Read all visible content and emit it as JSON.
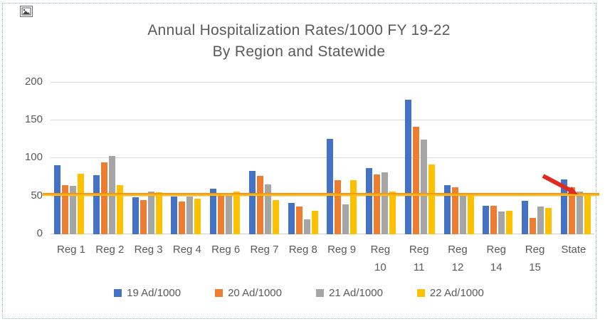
{
  "chart_data": {
    "type": "bar",
    "title_line1": "Annual Hospitalization Rates/1000 FY 19-22",
    "title_line2": "By Region and Statewide",
    "categories": [
      {
        "label": "Reg 1",
        "lines": [
          "Reg 1"
        ]
      },
      {
        "label": "Reg 2",
        "lines": [
          "Reg 2"
        ]
      },
      {
        "label": "Reg 3",
        "lines": [
          "Reg 3"
        ]
      },
      {
        "label": "Reg 4",
        "lines": [
          "Reg 4"
        ]
      },
      {
        "label": "Reg 6",
        "lines": [
          "Reg 6"
        ]
      },
      {
        "label": "Reg 7",
        "lines": [
          "Reg 7"
        ]
      },
      {
        "label": "Reg 8",
        "lines": [
          "Reg 8"
        ]
      },
      {
        "label": "Reg 9",
        "lines": [
          "Reg 9"
        ]
      },
      {
        "label": "Reg 10",
        "lines": [
          "Reg",
          "10"
        ]
      },
      {
        "label": "Reg 11",
        "lines": [
          "Reg",
          "11"
        ]
      },
      {
        "label": "Reg 12",
        "lines": [
          "Reg",
          "12"
        ]
      },
      {
        "label": "Reg 14",
        "lines": [
          "Reg",
          "14"
        ]
      },
      {
        "label": "Reg 15",
        "lines": [
          "Reg",
          "15"
        ]
      },
      {
        "label": "State",
        "lines": [
          "State"
        ]
      }
    ],
    "series": [
      {
        "name": "19 Ad/1000",
        "color": "#4472C4",
        "values": [
          91,
          78,
          49,
          50,
          60,
          84,
          41,
          126,
          87,
          177,
          65,
          38,
          44,
          72
        ]
      },
      {
        "name": "20 Ad/1000",
        "color": "#ED7D31",
        "values": [
          65,
          95,
          45,
          43,
          51,
          77,
          37,
          71,
          79,
          142,
          62,
          38,
          22,
          62
        ]
      },
      {
        "name": "21 Ad/1000",
        "color": "#A5A5A5",
        "values": [
          64,
          103,
          56,
          50,
          52,
          66,
          20,
          39,
          82,
          125,
          53,
          30,
          37,
          56
        ]
      },
      {
        "name": "22 Ad/1000",
        "color": "#FFC000",
        "values": [
          80,
          65,
          55,
          47,
          56,
          45,
          31,
          71,
          56,
          92,
          54,
          31,
          35,
          54
        ]
      }
    ],
    "yticks": [
      200,
      150,
      100,
      50,
      0
    ],
    "ylim": [
      0,
      200
    ],
    "grid": true,
    "legend_position": "bottom",
    "reference_line": {
      "value": 52,
      "color_top": "#F7941D",
      "color_bottom": "#FFC000"
    },
    "annotation": {
      "type": "declining-trend-arrow",
      "color": "#E02B20",
      "near_category": "State"
    }
  },
  "decorations": {
    "selection_border_color": "#8ABCCB",
    "placeholder_icon": "image-icon"
  }
}
